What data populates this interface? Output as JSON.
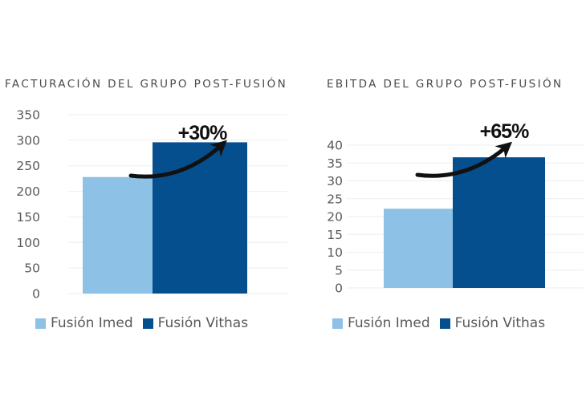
{
  "colors": {
    "imed": "#8EC1E6",
    "vithas": "#064F8E",
    "grid": "#eeeeee",
    "arrow": "#111111"
  },
  "chart_data": [
    {
      "type": "bar",
      "title": "FACTURACIÓN DEL GRUPO POST-FUSIÓN",
      "xlabel": "",
      "ylabel": "",
      "ylim": [
        0,
        350
      ],
      "yticks": [
        "0",
        "50",
        "100",
        "150",
        "200",
        "250",
        "300",
        "350"
      ],
      "ytick_values": [
        0,
        50,
        100,
        150,
        200,
        250,
        300,
        350
      ],
      "grid": true,
      "categories": [
        ""
      ],
      "series": [
        {
          "name": "Fusión Imed",
          "values": [
            228
          ]
        },
        {
          "name": "Fusión Vithas",
          "values": [
            296
          ]
        }
      ],
      "annotation": {
        "text": "+30%",
        "type": "curved-arrow",
        "from": "Fusión Imed",
        "to": "Fusión Vithas"
      },
      "legend": {
        "position": "bottom",
        "entries": [
          "Fusión Imed",
          "Fusión Vithas"
        ]
      }
    },
    {
      "type": "bar",
      "title": "EBITDA DEL GRUPO POST-FUSIÓN",
      "xlabel": "",
      "ylabel": "",
      "ylim": [
        0,
        40
      ],
      "yticks": [
        "0",
        "5",
        "10",
        "15",
        "20",
        "25",
        "30",
        "35",
        "40"
      ],
      "ytick_values": [
        0,
        5,
        10,
        15,
        20,
        25,
        30,
        35,
        40
      ],
      "grid": true,
      "categories": [
        ""
      ],
      "series": [
        {
          "name": "Fusión Imed",
          "values": [
            22.2
          ]
        },
        {
          "name": "Fusión Vithas",
          "values": [
            36.6
          ]
        }
      ],
      "annotation": {
        "text": "+65%",
        "type": "curved-arrow",
        "from": "Fusión Imed",
        "to": "Fusión Vithas"
      },
      "legend": {
        "position": "bottom",
        "entries": [
          "Fusión Imed",
          "Fusión Vithas"
        ]
      }
    }
  ]
}
